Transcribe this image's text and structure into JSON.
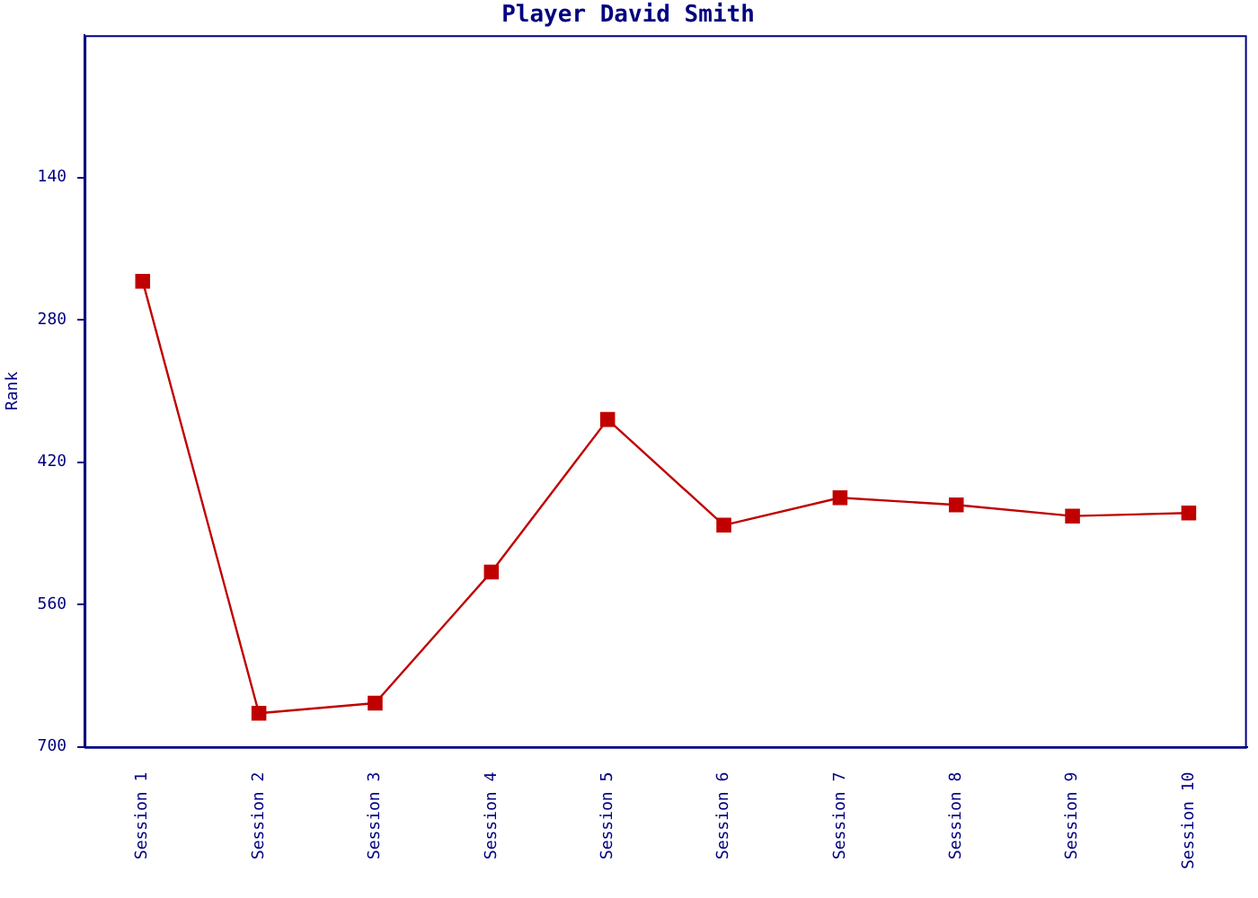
{
  "chart_data": {
    "type": "line",
    "title": "Player David Smith",
    "ylabel": "Rank",
    "categories": [
      "Session 1",
      "Session 2",
      "Session 3",
      "Session 4",
      "Session 5",
      "Session 6",
      "Session 7",
      "Session 8",
      "Session 9",
      "Session 10"
    ],
    "series": [
      {
        "color": "#c00000",
        "values": [
          242,
          667,
          657,
          528,
          378,
          482,
          455,
          462,
          473,
          470
        ]
      }
    ],
    "ylim": [
      700,
      0
    ],
    "yticks": [
      140,
      280,
      420,
      560,
      700
    ],
    "grid": false,
    "legend": false,
    "marker": "square",
    "line_style": "solid"
  }
}
